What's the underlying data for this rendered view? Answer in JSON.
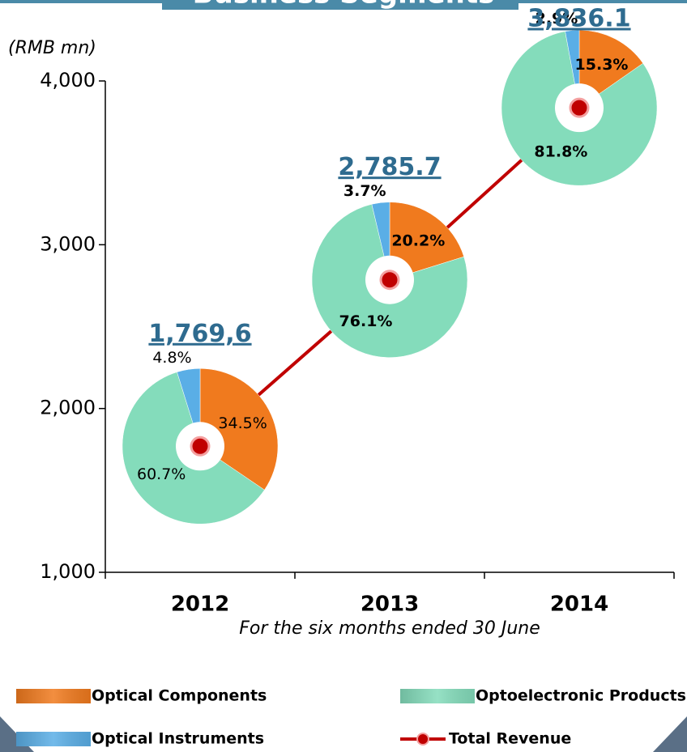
{
  "chart_data": {
    "type": "line",
    "title": "Business Segments",
    "y_label": "(RMB mn)",
    "x_label": "For the six months ended 30 June",
    "categories": [
      "2012",
      "2013",
      "2014"
    ],
    "ylim": [
      1000,
      4000
    ],
    "yticks": [
      {
        "value": 1000,
        "label": "1,000"
      },
      {
        "value": 2000,
        "label": "2,000"
      },
      {
        "value": 3000,
        "label": "3,000"
      },
      {
        "value": 4000,
        "label": "4,000"
      }
    ],
    "series": [
      {
        "name": "Optical Components",
        "type": "pie",
        "color": "#f07a1e",
        "values": [
          34.5,
          20.2,
          15.3
        ],
        "value_labels": [
          "34.5%",
          "20.2%",
          "15.3%"
        ]
      },
      {
        "name": "Optoelectronic Products",
        "type": "pie",
        "color": "#84dcbb",
        "values": [
          60.7,
          76.1,
          81.8
        ],
        "value_labels": [
          "60.7%",
          "76.1%",
          "81.8%"
        ]
      },
      {
        "name": "Optical Instruments",
        "type": "pie",
        "color": "#5aaee6",
        "values": [
          4.8,
          3.7,
          2.9
        ],
        "value_labels": [
          "4.8%",
          "3.7%",
          "2.9%"
        ]
      },
      {
        "name": "Total Revenue",
        "type": "line",
        "color": "#c00000",
        "values": [
          1769.6,
          2785.7,
          3836.1
        ],
        "value_labels": [
          "1,769,6",
          "2,785.7",
          "3,836.1"
        ]
      }
    ]
  }
}
